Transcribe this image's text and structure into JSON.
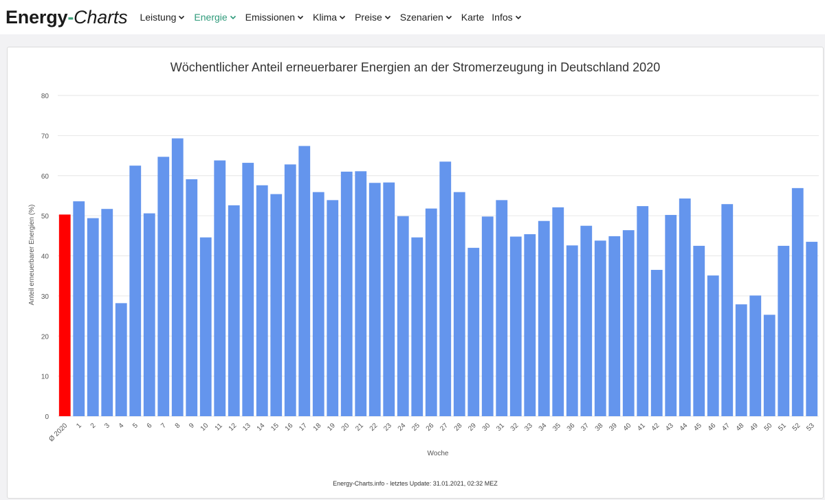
{
  "brand": {
    "part1": "Energy",
    "dash": "-",
    "part2": "Charts"
  },
  "nav": {
    "items": [
      {
        "label": "Leistung",
        "dropdown": true,
        "active": false
      },
      {
        "label": "Energie",
        "dropdown": true,
        "active": true
      },
      {
        "label": "Emissionen",
        "dropdown": true,
        "active": false
      },
      {
        "label": "Klima",
        "dropdown": true,
        "active": false
      },
      {
        "label": "Preise",
        "dropdown": true,
        "active": false
      },
      {
        "label": "Szenarien",
        "dropdown": true,
        "active": false
      },
      {
        "label": "Karte",
        "dropdown": false,
        "active": false
      },
      {
        "label": "Infos",
        "dropdown": true,
        "active": false
      }
    ]
  },
  "colors": {
    "bar": "#6495ed",
    "average_bar": "#ff0000",
    "active_nav": "#2e9a7a",
    "grid": "#e6e6e6"
  },
  "chart_data": {
    "type": "bar",
    "title": "Wöchentlicher Anteil erneuerbarer Energien an der Stromerzeugung in Deutschland 2020",
    "xlabel": "Woche",
    "ylabel": "Anteil erneuerbarer Energien (%)",
    "ylim": [
      0,
      80
    ],
    "yticks": [
      0,
      10,
      20,
      30,
      40,
      50,
      60,
      70,
      80
    ],
    "grid": true,
    "categories": [
      "Ø 2020",
      "1",
      "2",
      "3",
      "4",
      "5",
      "6",
      "7",
      "8",
      "9",
      "10",
      "11",
      "12",
      "13",
      "14",
      "15",
      "16",
      "17",
      "18",
      "19",
      "20",
      "21",
      "22",
      "23",
      "24",
      "25",
      "26",
      "27",
      "28",
      "29",
      "30",
      "31",
      "32",
      "33",
      "34",
      "35",
      "36",
      "37",
      "38",
      "39",
      "40",
      "41",
      "42",
      "43",
      "44",
      "45",
      "46",
      "47",
      "48",
      "49",
      "50",
      "51",
      "52",
      "53"
    ],
    "values": [
      50.3,
      53.6,
      49.4,
      51.7,
      28.2,
      62.5,
      50.6,
      64.7,
      69.3,
      59.1,
      44.6,
      63.8,
      52.6,
      63.2,
      57.6,
      55.4,
      62.8,
      67.4,
      55.9,
      53.9,
      61.0,
      61.1,
      58.2,
      58.3,
      49.9,
      44.6,
      51.8,
      63.5,
      55.9,
      42.0,
      49.8,
      53.9,
      44.8,
      45.4,
      48.7,
      52.1,
      42.6,
      47.5,
      43.8,
      44.9,
      46.4,
      52.4,
      36.5,
      50.2,
      54.3,
      42.5,
      35.1,
      52.9,
      27.9,
      30.1,
      25.3,
      42.5,
      56.9,
      43.5
    ],
    "highlight_index": 0
  },
  "footer": {
    "text": "Energy-Charts.info - letztes Update: 31.01.2021, 02:32 MEZ"
  }
}
